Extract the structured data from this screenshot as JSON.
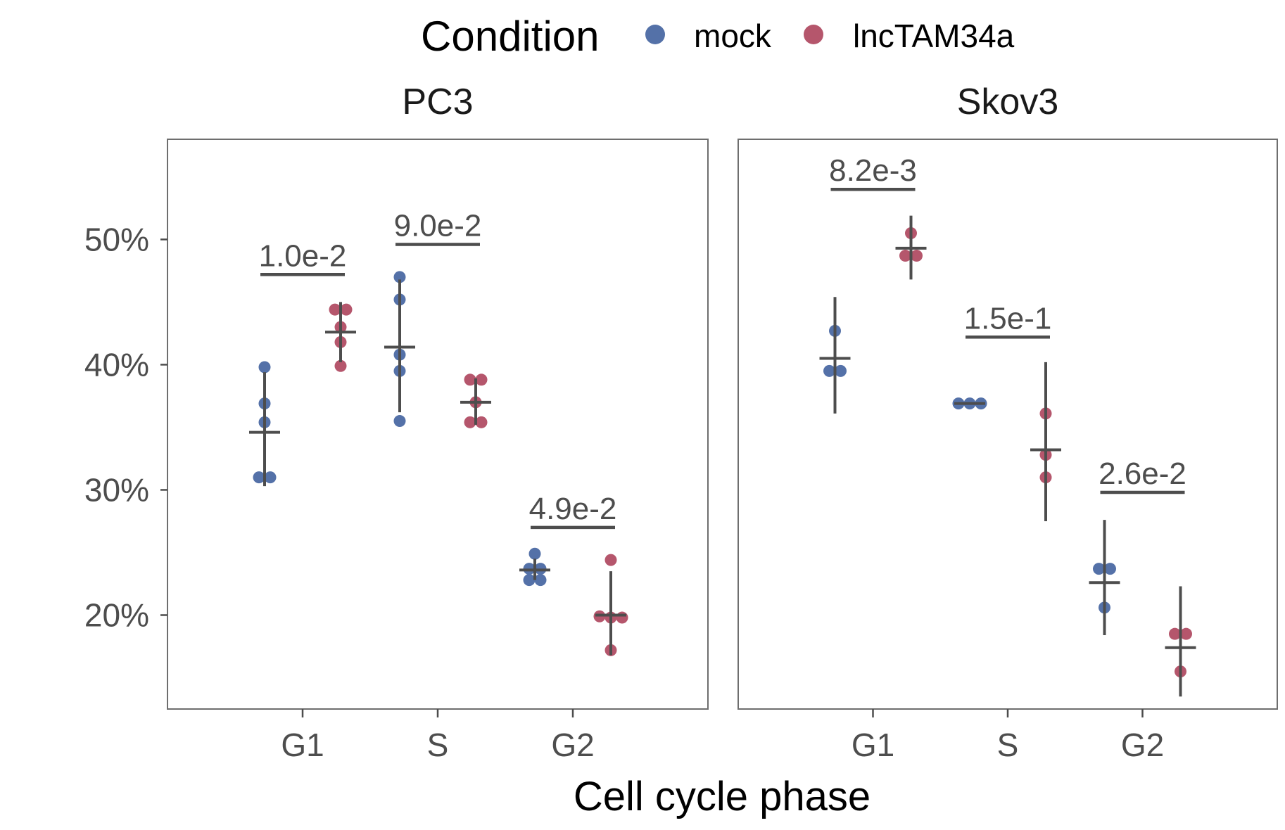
{
  "chart_data": {
    "type": "scatter",
    "xlabel": "Cell cycle phase",
    "ylabel": "",
    "legend": {
      "title": "Condition",
      "placement": "top",
      "entries": [
        {
          "name": "mock",
          "color": "#5471a8"
        },
        {
          "name": "lncTAM34a",
          "color": "#b5566c"
        }
      ]
    },
    "categories": [
      "G1",
      "S",
      "G2"
    ],
    "y_ticks": [
      20,
      30,
      40,
      50
    ],
    "y_tick_labels": [
      "20%",
      "30%",
      "40%",
      "50%"
    ],
    "ylim": [
      12.5,
      58
    ],
    "grid": false,
    "panels": [
      {
        "title": "PC3",
        "groups": [
          {
            "phase": "G1",
            "condition": "mock",
            "points": [
              39.8,
              36.9,
              35.4,
              31.0,
              31.0
            ],
            "mean": 34.6,
            "err_low": 30.3,
            "err_high": 39.4
          },
          {
            "phase": "G1",
            "condition": "lncTAM34a",
            "points": [
              44.4,
              44.4,
              43.0,
              41.8,
              39.9
            ],
            "mean": 42.6,
            "err_low": 40.2,
            "err_high": 45.0
          },
          {
            "phase": "S",
            "condition": "mock",
            "points": [
              47.0,
              45.2,
              40.8,
              39.5,
              35.5
            ],
            "mean": 41.4,
            "err_low": 36.2,
            "err_high": 46.8
          },
          {
            "phase": "S",
            "condition": "lncTAM34a",
            "points": [
              38.8,
              38.8,
              37.0,
              35.4,
              35.4
            ],
            "mean": 37.0,
            "err_low": 35.2,
            "err_high": 38.9
          },
          {
            "phase": "G2",
            "condition": "mock",
            "points": [
              24.9,
              23.7,
              23.7,
              22.8,
              22.8
            ],
            "mean": 23.6,
            "err_low": 22.8,
            "err_high": 24.5
          },
          {
            "phase": "G2",
            "condition": "lncTAM34a",
            "points": [
              24.4,
              19.9,
              19.8,
              19.8,
              17.2
            ],
            "mean": 20.0,
            "err_low": 16.8,
            "err_high": 23.5
          }
        ],
        "pvalues": [
          {
            "phase": "G1",
            "label": "1.0e-2",
            "y": 47.2
          },
          {
            "phase": "S",
            "label": "9.0e-2",
            "y": 49.6
          },
          {
            "phase": "G2",
            "label": "4.9e-2",
            "y": 27.0
          }
        ]
      },
      {
        "title": "Skov3",
        "groups": [
          {
            "phase": "G1",
            "condition": "mock",
            "points": [
              42.7,
              39.5,
              39.5
            ],
            "mean": 40.5,
            "err_low": 36.1,
            "err_high": 45.4
          },
          {
            "phase": "G1",
            "condition": "lncTAM34a",
            "points": [
              50.5,
              48.7,
              48.7
            ],
            "mean": 49.3,
            "err_low": 46.8,
            "err_high": 51.9
          },
          {
            "phase": "S",
            "condition": "mock",
            "points": [
              36.9,
              36.9,
              36.9
            ],
            "mean": 36.9,
            "err_low": 36.9,
            "err_high": 36.9
          },
          {
            "phase": "S",
            "condition": "lncTAM34a",
            "points": [
              36.1,
              32.8,
              31.0
            ],
            "mean": 33.2,
            "err_low": 27.5,
            "err_high": 40.2
          },
          {
            "phase": "G2",
            "condition": "mock",
            "points": [
              23.7,
              23.7,
              20.6
            ],
            "mean": 22.6,
            "err_low": 18.4,
            "err_high": 27.6
          },
          {
            "phase": "G2",
            "condition": "lncTAM34a",
            "points": [
              18.5,
              18.5,
              15.5
            ],
            "mean": 17.4,
            "err_low": 13.5,
            "err_high": 22.3
          }
        ],
        "pvalues": [
          {
            "phase": "G1",
            "label": "8.2e-3",
            "y": 54.0
          },
          {
            "phase": "S",
            "label": "1.5e-1",
            "y": 42.2
          },
          {
            "phase": "G2",
            "label": "2.6e-2",
            "y": 29.8
          }
        ]
      }
    ]
  }
}
